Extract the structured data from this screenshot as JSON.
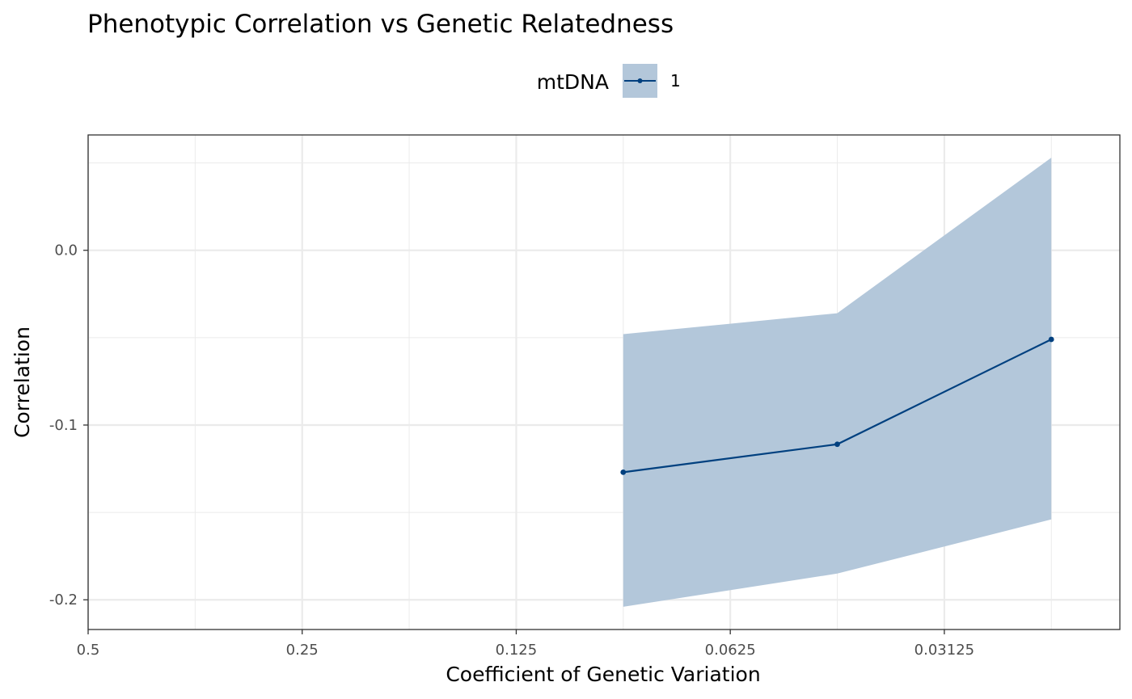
{
  "chart_data": {
    "type": "line",
    "title": "Phenotypic Correlation vs Genetic Relatedness",
    "xlabel": "Coefficient of Genetic Variation",
    "ylabel": "Correlation",
    "x_scale": "log2-reversed",
    "xlim": [
      0.5,
      0.0177
    ],
    "ylim": [
      -0.217,
      0.066
    ],
    "x_ticks": [
      {
        "value": 0.5,
        "label": "0.5"
      },
      {
        "value": 0.25,
        "label": "0.25"
      },
      {
        "value": 0.125,
        "label": "0.125"
      },
      {
        "value": 0.0625,
        "label": "0.0625"
      },
      {
        "value": 0.03125,
        "label": "0.03125"
      }
    ],
    "y_ticks": [
      {
        "value": 0.0,
        "label": "0.0"
      },
      {
        "value": -0.1,
        "label": "-0.1"
      },
      {
        "value": -0.2,
        "label": "-0.2"
      }
    ],
    "grid": true,
    "legend": {
      "title": "mtDNA",
      "position": "top"
    },
    "series": [
      {
        "name": "1",
        "color": "#00407f",
        "ribbon_color": "#b3c7da",
        "points": [
          {
            "x": 0.0884,
            "y": -0.127,
            "ymin": -0.204,
            "ymax": -0.048
          },
          {
            "x": 0.0442,
            "y": -0.111,
            "ymin": -0.185,
            "ymax": -0.036
          },
          {
            "x": 0.0221,
            "y": -0.051,
            "ymin": -0.154,
            "ymax": 0.053
          }
        ]
      }
    ]
  }
}
